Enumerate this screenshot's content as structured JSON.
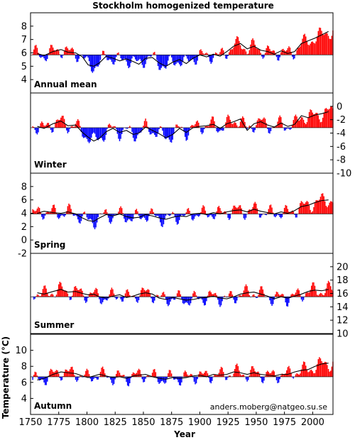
{
  "chart_data": {
    "type": "bar",
    "title": "Stockholm homogenized temperature",
    "xlabel": "Year",
    "ylabel": "Temperature (°C)",
    "credit": "anders.moberg@natgeo.su.se",
    "xlim": [
      1750,
      2018
    ],
    "x_ticks": [
      1750,
      1775,
      1800,
      1825,
      1850,
      1875,
      1900,
      1925,
      1950,
      1975,
      2000
    ],
    "colors": {
      "above": "#ff0000",
      "below": "#0000ff",
      "smooth": "#000000"
    },
    "panels": [
      {
        "name": "Annual mean",
        "ylim": [
          3,
          9
        ],
        "baseline": 5.85,
        "tick_side": "left",
        "yticks": [
          4,
          5,
          6,
          7,
          8
        ],
        "smooth": [
          [
            1756,
            5.95
          ],
          [
            1762,
            5.8
          ],
          [
            1770,
            6.1
          ],
          [
            1777,
            6.25
          ],
          [
            1783,
            6.05
          ],
          [
            1790,
            6.0
          ],
          [
            1796,
            5.7
          ],
          [
            1801,
            5.1
          ],
          [
            1806,
            5.0
          ],
          [
            1811,
            5.25
          ],
          [
            1817,
            5.75
          ],
          [
            1823,
            5.6
          ],
          [
            1829,
            5.4
          ],
          [
            1835,
            5.55
          ],
          [
            1841,
            5.35
          ],
          [
            1846,
            5.15
          ],
          [
            1852,
            5.6
          ],
          [
            1858,
            5.65
          ],
          [
            1864,
            5.25
          ],
          [
            1870,
            5.0
          ],
          [
            1876,
            5.3
          ],
          [
            1882,
            5.5
          ],
          [
            1888,
            5.2
          ],
          [
            1894,
            5.6
          ],
          [
            1900,
            5.85
          ],
          [
            1906,
            5.7
          ],
          [
            1912,
            5.9
          ],
          [
            1918,
            5.75
          ],
          [
            1924,
            6.1
          ],
          [
            1930,
            6.5
          ],
          [
            1936,
            6.7
          ],
          [
            1942,
            6.3
          ],
          [
            1948,
            6.5
          ],
          [
            1954,
            6.2
          ],
          [
            1960,
            6.1
          ],
          [
            1966,
            5.9
          ],
          [
            1972,
            6.15
          ],
          [
            1978,
            5.95
          ],
          [
            1984,
            6.1
          ],
          [
            1990,
            6.7
          ],
          [
            1996,
            6.9
          ],
          [
            2002,
            7.1
          ],
          [
            2008,
            7.35
          ],
          [
            2014,
            7.6
          ]
        ]
      },
      {
        "name": "Winter",
        "ylim": [
          -10,
          2
        ],
        "baseline": -3.2,
        "tick_side": "right",
        "yticks": [
          -10,
          -8,
          -6,
          -4,
          -2,
          0
        ],
        "smooth": [
          [
            1756,
            -3.0
          ],
          [
            1762,
            -3.3
          ],
          [
            1770,
            -2.6
          ],
          [
            1777,
            -2.2
          ],
          [
            1783,
            -2.9
          ],
          [
            1790,
            -2.8
          ],
          [
            1796,
            -3.9
          ],
          [
            1801,
            -4.6
          ],
          [
            1806,
            -5.2
          ],
          [
            1811,
            -4.8
          ],
          [
            1817,
            -3.8
          ],
          [
            1823,
            -3.3
          ],
          [
            1829,
            -3.9
          ],
          [
            1835,
            -3.6
          ],
          [
            1841,
            -4.2
          ],
          [
            1846,
            -4.0
          ],
          [
            1852,
            -3.1
          ],
          [
            1858,
            -3.6
          ],
          [
            1864,
            -4.1
          ],
          [
            1870,
            -4.7
          ],
          [
            1876,
            -4.2
          ],
          [
            1882,
            -3.3
          ],
          [
            1888,
            -3.9
          ],
          [
            1894,
            -3.2
          ],
          [
            1900,
            -3.0
          ],
          [
            1906,
            -2.9
          ],
          [
            1912,
            -2.7
          ],
          [
            1918,
            -3.3
          ],
          [
            1924,
            -2.6
          ],
          [
            1930,
            -2.3
          ],
          [
            1936,
            -1.9
          ],
          [
            1942,
            -3.6
          ],
          [
            1948,
            -2.6
          ],
          [
            1954,
            -2.3
          ],
          [
            1960,
            -2.8
          ],
          [
            1966,
            -3.1
          ],
          [
            1972,
            -2.5
          ],
          [
            1978,
            -3.0
          ],
          [
            1984,
            -2.7
          ],
          [
            1990,
            -1.4
          ],
          [
            1996,
            -1.7
          ],
          [
            2002,
            -1.3
          ],
          [
            2008,
            -1.1
          ],
          [
            2014,
            -0.8
          ]
        ]
      },
      {
        "name": "Spring",
        "ylim": [
          -2,
          10
        ],
        "baseline": 3.9,
        "tick_side": "left",
        "yticks": [
          -2,
          0,
          2,
          4,
          6,
          8
        ],
        "smooth": [
          [
            1756,
            4.0
          ],
          [
            1762,
            4.3
          ],
          [
            1770,
            4.1
          ],
          [
            1777,
            4.0
          ],
          [
            1783,
            4.2
          ],
          [
            1790,
            3.9
          ],
          [
            1796,
            3.3
          ],
          [
            1801,
            2.9
          ],
          [
            1806,
            2.8
          ],
          [
            1811,
            3.3
          ],
          [
            1817,
            3.8
          ],
          [
            1823,
            3.6
          ],
          [
            1829,
            3.9
          ],
          [
            1835,
            3.5
          ],
          [
            1841,
            3.3
          ],
          [
            1846,
            3.4
          ],
          [
            1852,
            3.8
          ],
          [
            1858,
            3.6
          ],
          [
            1864,
            3.3
          ],
          [
            1870,
            3.1
          ],
          [
            1876,
            3.4
          ],
          [
            1882,
            3.6
          ],
          [
            1888,
            3.5
          ],
          [
            1894,
            3.9
          ],
          [
            1900,
            4.0
          ],
          [
            1906,
            3.8
          ],
          [
            1912,
            4.1
          ],
          [
            1918,
            3.9
          ],
          [
            1924,
            4.2
          ],
          [
            1930,
            4.4
          ],
          [
            1936,
            4.5
          ],
          [
            1942,
            4.2
          ],
          [
            1948,
            4.6
          ],
          [
            1954,
            4.3
          ],
          [
            1960,
            4.1
          ],
          [
            1966,
            3.9
          ],
          [
            1972,
            4.2
          ],
          [
            1978,
            4.0
          ],
          [
            1984,
            4.4
          ],
          [
            1990,
            5.0
          ],
          [
            1996,
            5.2
          ],
          [
            2002,
            5.6
          ],
          [
            2008,
            5.9
          ],
          [
            2014,
            6.0
          ]
        ]
      },
      {
        "name": "Summer",
        "ylim": [
          10,
          22
        ],
        "baseline": 15.5,
        "tick_side": "right",
        "yticks": [
          10,
          12,
          14,
          16,
          18,
          20
        ],
        "smooth": [
          [
            1756,
            16.1
          ],
          [
            1762,
            15.9
          ],
          [
            1770,
            16.3
          ],
          [
            1777,
            16.6
          ],
          [
            1783,
            16.2
          ],
          [
            1790,
            16.3
          ],
          [
            1796,
            16.0
          ],
          [
            1801,
            15.8
          ],
          [
            1806,
            15.9
          ],
          [
            1811,
            15.5
          ],
          [
            1817,
            15.3
          ],
          [
            1823,
            15.6
          ],
          [
            1829,
            15.8
          ],
          [
            1835,
            15.4
          ],
          [
            1841,
            15.6
          ],
          [
            1846,
            15.9
          ],
          [
            1852,
            16.1
          ],
          [
            1858,
            15.9
          ],
          [
            1864,
            15.3
          ],
          [
            1870,
            15.1
          ],
          [
            1876,
            15.4
          ],
          [
            1882,
            15.2
          ],
          [
            1888,
            15.0
          ],
          [
            1894,
            15.1
          ],
          [
            1900,
            15.3
          ],
          [
            1906,
            15.4
          ],
          [
            1912,
            15.6
          ],
          [
            1918,
            15.3
          ],
          [
            1924,
            15.2
          ],
          [
            1930,
            15.5
          ],
          [
            1936,
            15.9
          ],
          [
            1942,
            16.1
          ],
          [
            1948,
            16.2
          ],
          [
            1954,
            15.9
          ],
          [
            1960,
            15.6
          ],
          [
            1966,
            15.2
          ],
          [
            1972,
            15.5
          ],
          [
            1978,
            15.3
          ],
          [
            1984,
            15.6
          ],
          [
            1990,
            15.9
          ],
          [
            1996,
            16.3
          ],
          [
            2002,
            16.5
          ],
          [
            2008,
            16.4
          ],
          [
            2014,
            16.6
          ]
        ]
      },
      {
        "name": "Autumn",
        "ylim": [
          2,
          12
        ],
        "baseline": 6.7,
        "tick_side": "left",
        "yticks": [
          4,
          6,
          8,
          10
        ],
        "smooth": [
          [
            1756,
            6.3
          ],
          [
            1762,
            6.5
          ],
          [
            1770,
            7.0
          ],
          [
            1777,
            7.3
          ],
          [
            1783,
            7.2
          ],
          [
            1790,
            7.1
          ],
          [
            1796,
            6.8
          ],
          [
            1801,
            6.6
          ],
          [
            1806,
            6.8
          ],
          [
            1811,
            7.0
          ],
          [
            1817,
            6.8
          ],
          [
            1823,
            6.6
          ],
          [
            1829,
            6.7
          ],
          [
            1835,
            6.5
          ],
          [
            1841,
            6.8
          ],
          [
            1846,
            6.9
          ],
          [
            1852,
            7.0
          ],
          [
            1858,
            6.7
          ],
          [
            1864,
            6.5
          ],
          [
            1870,
            6.4
          ],
          [
            1876,
            6.6
          ],
          [
            1882,
            6.5
          ],
          [
            1888,
            6.6
          ],
          [
            1894,
            6.8
          ],
          [
            1900,
            6.9
          ],
          [
            1906,
            6.7
          ],
          [
            1912,
            7.0
          ],
          [
            1918,
            6.9
          ],
          [
            1924,
            7.0
          ],
          [
            1930,
            7.3
          ],
          [
            1936,
            7.2
          ],
          [
            1942,
            7.0
          ],
          [
            1948,
            7.2
          ],
          [
            1954,
            7.0
          ],
          [
            1960,
            6.9
          ],
          [
            1966,
            6.8
          ],
          [
            1972,
            7.0
          ],
          [
            1978,
            7.0
          ],
          [
            1984,
            7.3
          ],
          [
            1990,
            7.5
          ],
          [
            1996,
            7.6
          ],
          [
            2002,
            8.0
          ],
          [
            2008,
            8.3
          ],
          [
            2014,
            8.4
          ]
        ]
      }
    ]
  }
}
